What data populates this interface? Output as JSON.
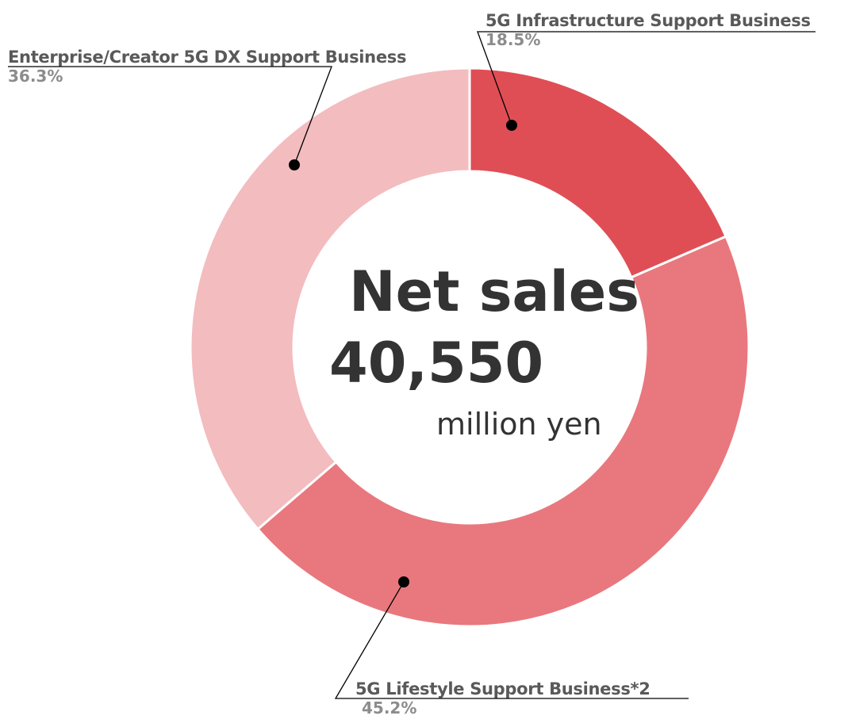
{
  "chart_data": {
    "type": "pie",
    "style": "donut",
    "center": {
      "title": "Net sales",
      "value": "40,550",
      "unit": "million yen"
    },
    "slices": [
      {
        "label": "5G Infrastructure Support Business",
        "value": 18.5,
        "display": "18.5%",
        "color": "#e04e55"
      },
      {
        "label": "5G Lifestyle Support Business*2",
        "value": 45.2,
        "display": "45.2%",
        "color": "#e8787e"
      },
      {
        "label": "Enterprise/Creator 5G DX Support Business",
        "value": 36.3,
        "display": "36.3%",
        "color": "#f3bcbf"
      }
    ]
  }
}
